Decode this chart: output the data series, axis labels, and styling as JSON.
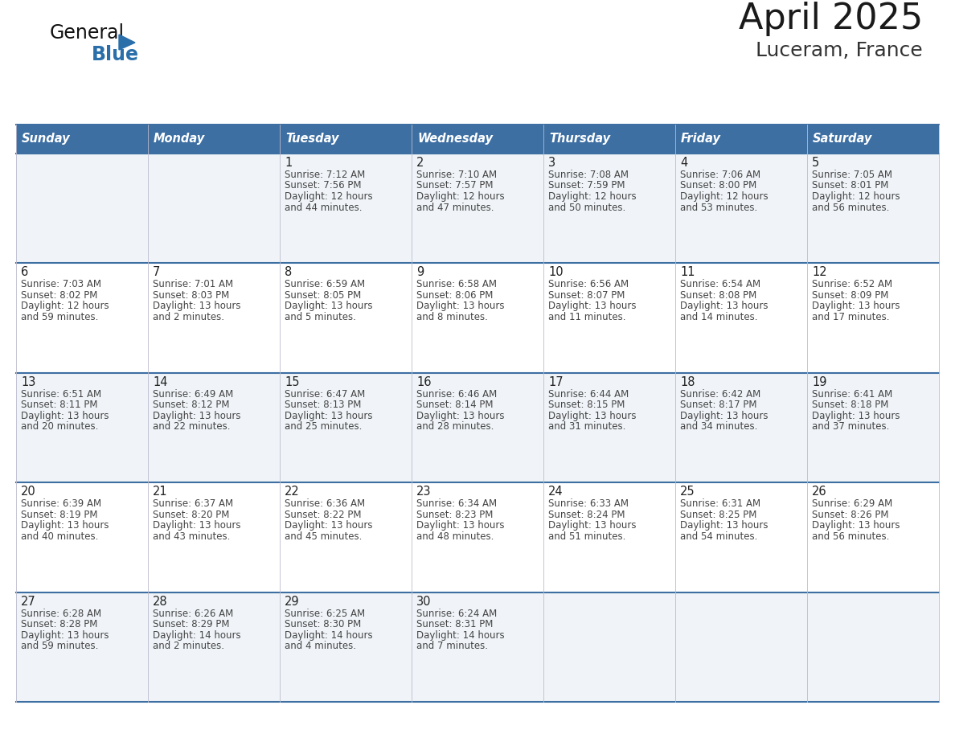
{
  "title": "April 2025",
  "subtitle": "Luceram, France",
  "days_of_week": [
    "Sunday",
    "Monday",
    "Tuesday",
    "Wednesday",
    "Thursday",
    "Friday",
    "Saturday"
  ],
  "header_bg": "#3d6fa3",
  "header_text": "#ffffff",
  "cell_bg_odd": "#f0f4f8",
  "cell_bg_even": "#ffffff",
  "day_num_color": "#222222",
  "text_color": "#444444",
  "border_color": "#3d6fa3",
  "grid_line_color": "#3d6fa3",
  "title_color": "#1a1a1a",
  "subtitle_color": "#333333",
  "logo_general_color": "#111111",
  "logo_blue_color": "#2a6faa",
  "weeks": [
    [
      {
        "day": null,
        "text": ""
      },
      {
        "day": null,
        "text": ""
      },
      {
        "day": 1,
        "text": "Sunrise: 7:12 AM\nSunset: 7:56 PM\nDaylight: 12 hours\nand 44 minutes."
      },
      {
        "day": 2,
        "text": "Sunrise: 7:10 AM\nSunset: 7:57 PM\nDaylight: 12 hours\nand 47 minutes."
      },
      {
        "day": 3,
        "text": "Sunrise: 7:08 AM\nSunset: 7:59 PM\nDaylight: 12 hours\nand 50 minutes."
      },
      {
        "day": 4,
        "text": "Sunrise: 7:06 AM\nSunset: 8:00 PM\nDaylight: 12 hours\nand 53 minutes."
      },
      {
        "day": 5,
        "text": "Sunrise: 7:05 AM\nSunset: 8:01 PM\nDaylight: 12 hours\nand 56 minutes."
      }
    ],
    [
      {
        "day": 6,
        "text": "Sunrise: 7:03 AM\nSunset: 8:02 PM\nDaylight: 12 hours\nand 59 minutes."
      },
      {
        "day": 7,
        "text": "Sunrise: 7:01 AM\nSunset: 8:03 PM\nDaylight: 13 hours\nand 2 minutes."
      },
      {
        "day": 8,
        "text": "Sunrise: 6:59 AM\nSunset: 8:05 PM\nDaylight: 13 hours\nand 5 minutes."
      },
      {
        "day": 9,
        "text": "Sunrise: 6:58 AM\nSunset: 8:06 PM\nDaylight: 13 hours\nand 8 minutes."
      },
      {
        "day": 10,
        "text": "Sunrise: 6:56 AM\nSunset: 8:07 PM\nDaylight: 13 hours\nand 11 minutes."
      },
      {
        "day": 11,
        "text": "Sunrise: 6:54 AM\nSunset: 8:08 PM\nDaylight: 13 hours\nand 14 minutes."
      },
      {
        "day": 12,
        "text": "Sunrise: 6:52 AM\nSunset: 8:09 PM\nDaylight: 13 hours\nand 17 minutes."
      }
    ],
    [
      {
        "day": 13,
        "text": "Sunrise: 6:51 AM\nSunset: 8:11 PM\nDaylight: 13 hours\nand 20 minutes."
      },
      {
        "day": 14,
        "text": "Sunrise: 6:49 AM\nSunset: 8:12 PM\nDaylight: 13 hours\nand 22 minutes."
      },
      {
        "day": 15,
        "text": "Sunrise: 6:47 AM\nSunset: 8:13 PM\nDaylight: 13 hours\nand 25 minutes."
      },
      {
        "day": 16,
        "text": "Sunrise: 6:46 AM\nSunset: 8:14 PM\nDaylight: 13 hours\nand 28 minutes."
      },
      {
        "day": 17,
        "text": "Sunrise: 6:44 AM\nSunset: 8:15 PM\nDaylight: 13 hours\nand 31 minutes."
      },
      {
        "day": 18,
        "text": "Sunrise: 6:42 AM\nSunset: 8:17 PM\nDaylight: 13 hours\nand 34 minutes."
      },
      {
        "day": 19,
        "text": "Sunrise: 6:41 AM\nSunset: 8:18 PM\nDaylight: 13 hours\nand 37 minutes."
      }
    ],
    [
      {
        "day": 20,
        "text": "Sunrise: 6:39 AM\nSunset: 8:19 PM\nDaylight: 13 hours\nand 40 minutes."
      },
      {
        "day": 21,
        "text": "Sunrise: 6:37 AM\nSunset: 8:20 PM\nDaylight: 13 hours\nand 43 minutes."
      },
      {
        "day": 22,
        "text": "Sunrise: 6:36 AM\nSunset: 8:22 PM\nDaylight: 13 hours\nand 45 minutes."
      },
      {
        "day": 23,
        "text": "Sunrise: 6:34 AM\nSunset: 8:23 PM\nDaylight: 13 hours\nand 48 minutes."
      },
      {
        "day": 24,
        "text": "Sunrise: 6:33 AM\nSunset: 8:24 PM\nDaylight: 13 hours\nand 51 minutes."
      },
      {
        "day": 25,
        "text": "Sunrise: 6:31 AM\nSunset: 8:25 PM\nDaylight: 13 hours\nand 54 minutes."
      },
      {
        "day": 26,
        "text": "Sunrise: 6:29 AM\nSunset: 8:26 PM\nDaylight: 13 hours\nand 56 minutes."
      }
    ],
    [
      {
        "day": 27,
        "text": "Sunrise: 6:28 AM\nSunset: 8:28 PM\nDaylight: 13 hours\nand 59 minutes."
      },
      {
        "day": 28,
        "text": "Sunrise: 6:26 AM\nSunset: 8:29 PM\nDaylight: 14 hours\nand 2 minutes."
      },
      {
        "day": 29,
        "text": "Sunrise: 6:25 AM\nSunset: 8:30 PM\nDaylight: 14 hours\nand 4 minutes."
      },
      {
        "day": 30,
        "text": "Sunrise: 6:24 AM\nSunset: 8:31 PM\nDaylight: 14 hours\nand 7 minutes."
      },
      {
        "day": null,
        "text": ""
      },
      {
        "day": null,
        "text": ""
      },
      {
        "day": null,
        "text": ""
      }
    ]
  ]
}
